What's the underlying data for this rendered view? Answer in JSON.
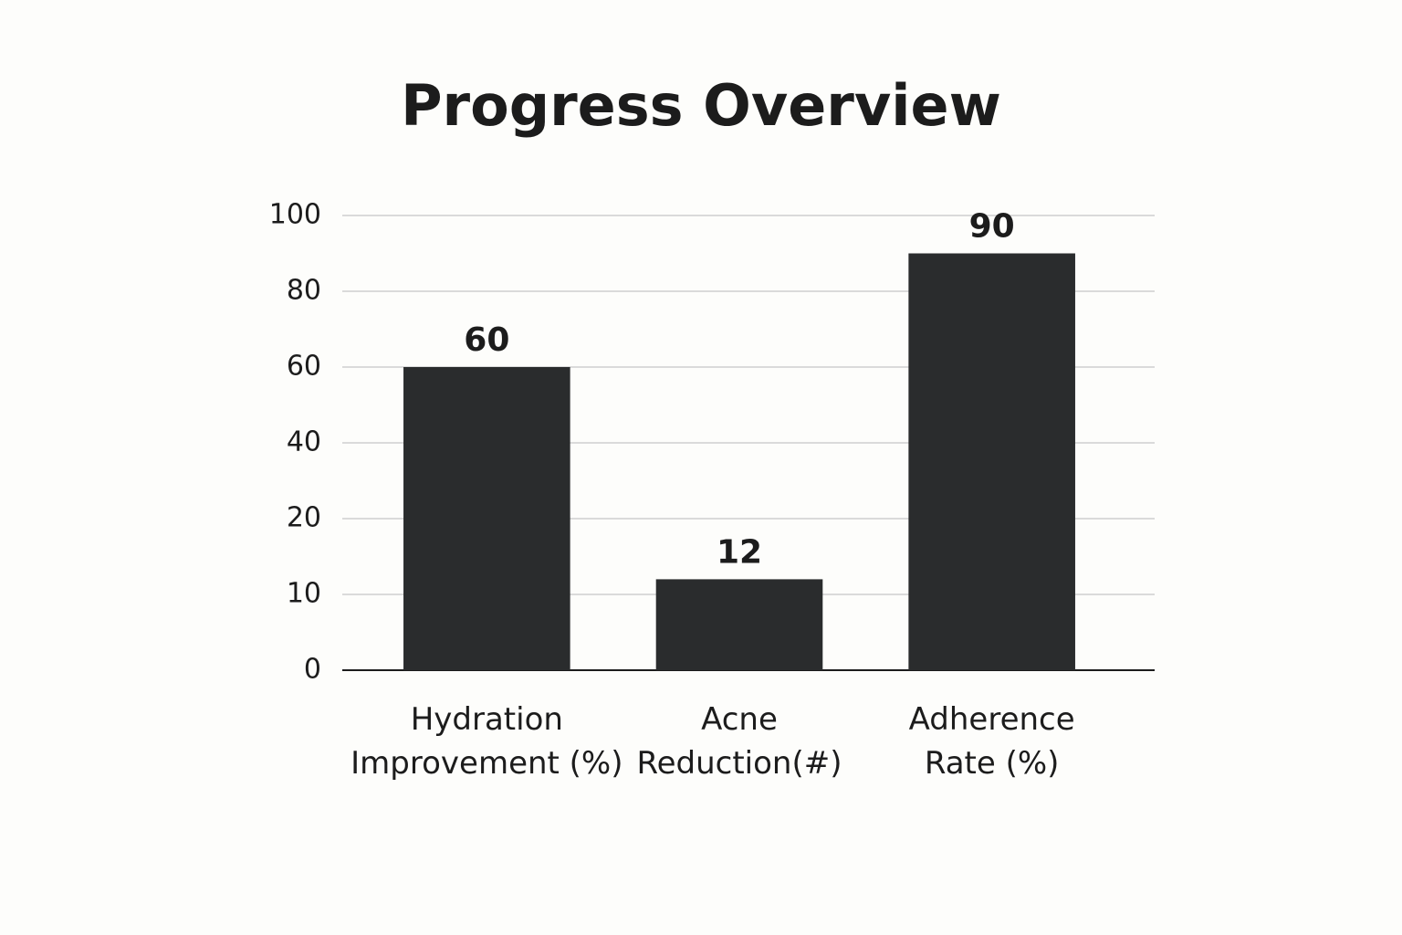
{
  "chart_data": {
    "type": "bar",
    "title": "Progress Overview",
    "categories": [
      "Hydration\nImprovement (%)",
      "Acne\nReduction(#)",
      "Adherence\nRate (%)"
    ],
    "values": [
      60,
      12,
      90
    ],
    "color": "#2a2c2d",
    "ylim": [
      0,
      100
    ],
    "yticks": [
      0,
      10,
      20,
      40,
      60,
      80,
      100
    ],
    "grid": true
  }
}
